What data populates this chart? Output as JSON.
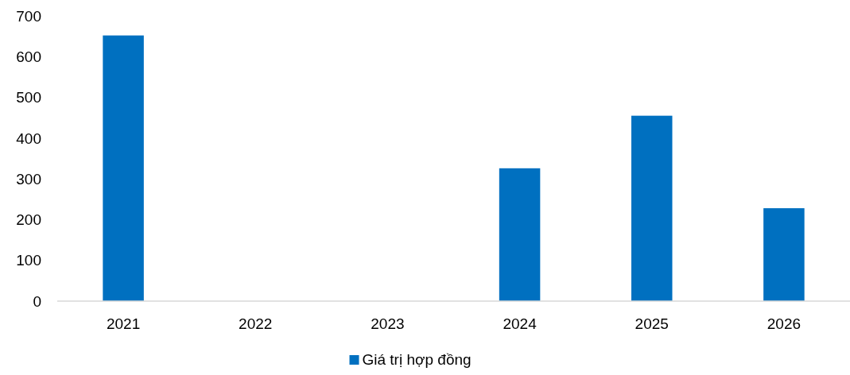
{
  "chart_data": {
    "type": "bar",
    "categories": [
      "2021",
      "2022",
      "2023",
      "2024",
      "2025",
      "2026"
    ],
    "series": [
      {
        "name": "Giá trị hợp đồng",
        "color": "#0070c0",
        "values": [
          652,
          0,
          0,
          326,
          455,
          228
        ]
      }
    ],
    "ylim": [
      0,
      700
    ],
    "yticks": [
      0,
      100,
      200,
      300,
      400,
      500,
      600,
      700
    ],
    "grid": false,
    "legend": "bottom"
  }
}
